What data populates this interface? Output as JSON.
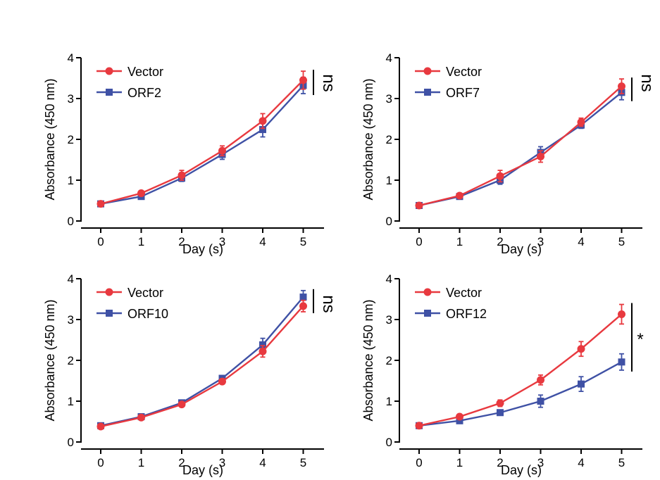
{
  "colors": {
    "vector": "#e8393f",
    "orf": "#3f51a5",
    "axis": "#000000"
  },
  "chart_data": [
    {
      "type": "line",
      "xlabel": "Day (s)",
      "ylabel": "Absorbance (450 nm)",
      "x": [
        0,
        1,
        2,
        3,
        4,
        5
      ],
      "xticks": [
        "0",
        "1",
        "2",
        "3",
        "4",
        "5"
      ],
      "ylim": [
        0,
        4
      ],
      "yticks": [
        "0",
        "1",
        "2",
        "3",
        "4"
      ],
      "significance": "ns",
      "series": [
        {
          "name": "Vector",
          "marker": "circle",
          "values": [
            0.42,
            0.68,
            1.12,
            1.72,
            2.45,
            3.45
          ],
          "errors": [
            0.03,
            0.04,
            0.12,
            0.12,
            0.18,
            0.22
          ]
        },
        {
          "name": "ORF2",
          "marker": "square",
          "values": [
            0.42,
            0.6,
            1.05,
            1.63,
            2.24,
            3.32
          ],
          "errors": [
            0.03,
            0.04,
            0.08,
            0.12,
            0.18,
            0.2
          ]
        }
      ]
    },
    {
      "type": "line",
      "xlabel": "Day (s)",
      "ylabel": "Absorbance (450 nm)",
      "x": [
        0,
        1,
        2,
        3,
        4,
        5
      ],
      "xticks": [
        "0",
        "1",
        "2",
        "3",
        "4",
        "5"
      ],
      "ylim": [
        0,
        4
      ],
      "yticks": [
        "0",
        "1",
        "2",
        "3",
        "4"
      ],
      "significance": "ns",
      "series": [
        {
          "name": "Vector",
          "marker": "circle",
          "values": [
            0.38,
            0.62,
            1.1,
            1.58,
            2.42,
            3.3
          ],
          "errors": [
            0.03,
            0.04,
            0.14,
            0.14,
            0.1,
            0.18
          ]
        },
        {
          "name": "ORF7",
          "marker": "square",
          "values": [
            0.38,
            0.6,
            1.0,
            1.68,
            2.35,
            3.15
          ],
          "errors": [
            0.03,
            0.04,
            0.1,
            0.14,
            0.08,
            0.18
          ]
        }
      ]
    },
    {
      "type": "line",
      "xlabel": "Day (s)",
      "ylabel": "Absorbance (450 nm)",
      "x": [
        0,
        1,
        2,
        3,
        4,
        5
      ],
      "xticks": [
        "0",
        "1",
        "2",
        "3",
        "4",
        "5"
      ],
      "ylim": [
        0,
        4
      ],
      "yticks": [
        "0",
        "1",
        "2",
        "3",
        "4"
      ],
      "significance": "ns",
      "series": [
        {
          "name": "Vector",
          "marker": "circle",
          "values": [
            0.38,
            0.6,
            0.92,
            1.48,
            2.22,
            3.33
          ],
          "errors": [
            0.03,
            0.04,
            0.05,
            0.06,
            0.14,
            0.14
          ]
        },
        {
          "name": "ORF10",
          "marker": "square",
          "values": [
            0.4,
            0.62,
            0.96,
            1.56,
            2.38,
            3.55
          ],
          "errors": [
            0.03,
            0.04,
            0.05,
            0.06,
            0.16,
            0.16
          ]
        }
      ]
    },
    {
      "type": "line",
      "xlabel": "Day (s)",
      "ylabel": "Absorbance (450 nm)",
      "x": [
        0,
        1,
        2,
        3,
        4,
        5
      ],
      "xticks": [
        "0",
        "1",
        "2",
        "3",
        "4",
        "5"
      ],
      "ylim": [
        0,
        4
      ],
      "yticks": [
        "0",
        "1",
        "2",
        "3",
        "4"
      ],
      "significance": "*",
      "series": [
        {
          "name": "Vector",
          "marker": "circle",
          "values": [
            0.4,
            0.62,
            0.95,
            1.52,
            2.28,
            3.13
          ],
          "errors": [
            0.03,
            0.04,
            0.08,
            0.12,
            0.18,
            0.24
          ]
        },
        {
          "name": "ORF12",
          "marker": "square",
          "values": [
            0.4,
            0.52,
            0.72,
            1.0,
            1.42,
            1.96
          ],
          "errors": [
            0.03,
            0.04,
            0.06,
            0.15,
            0.18,
            0.2
          ]
        }
      ]
    }
  ]
}
